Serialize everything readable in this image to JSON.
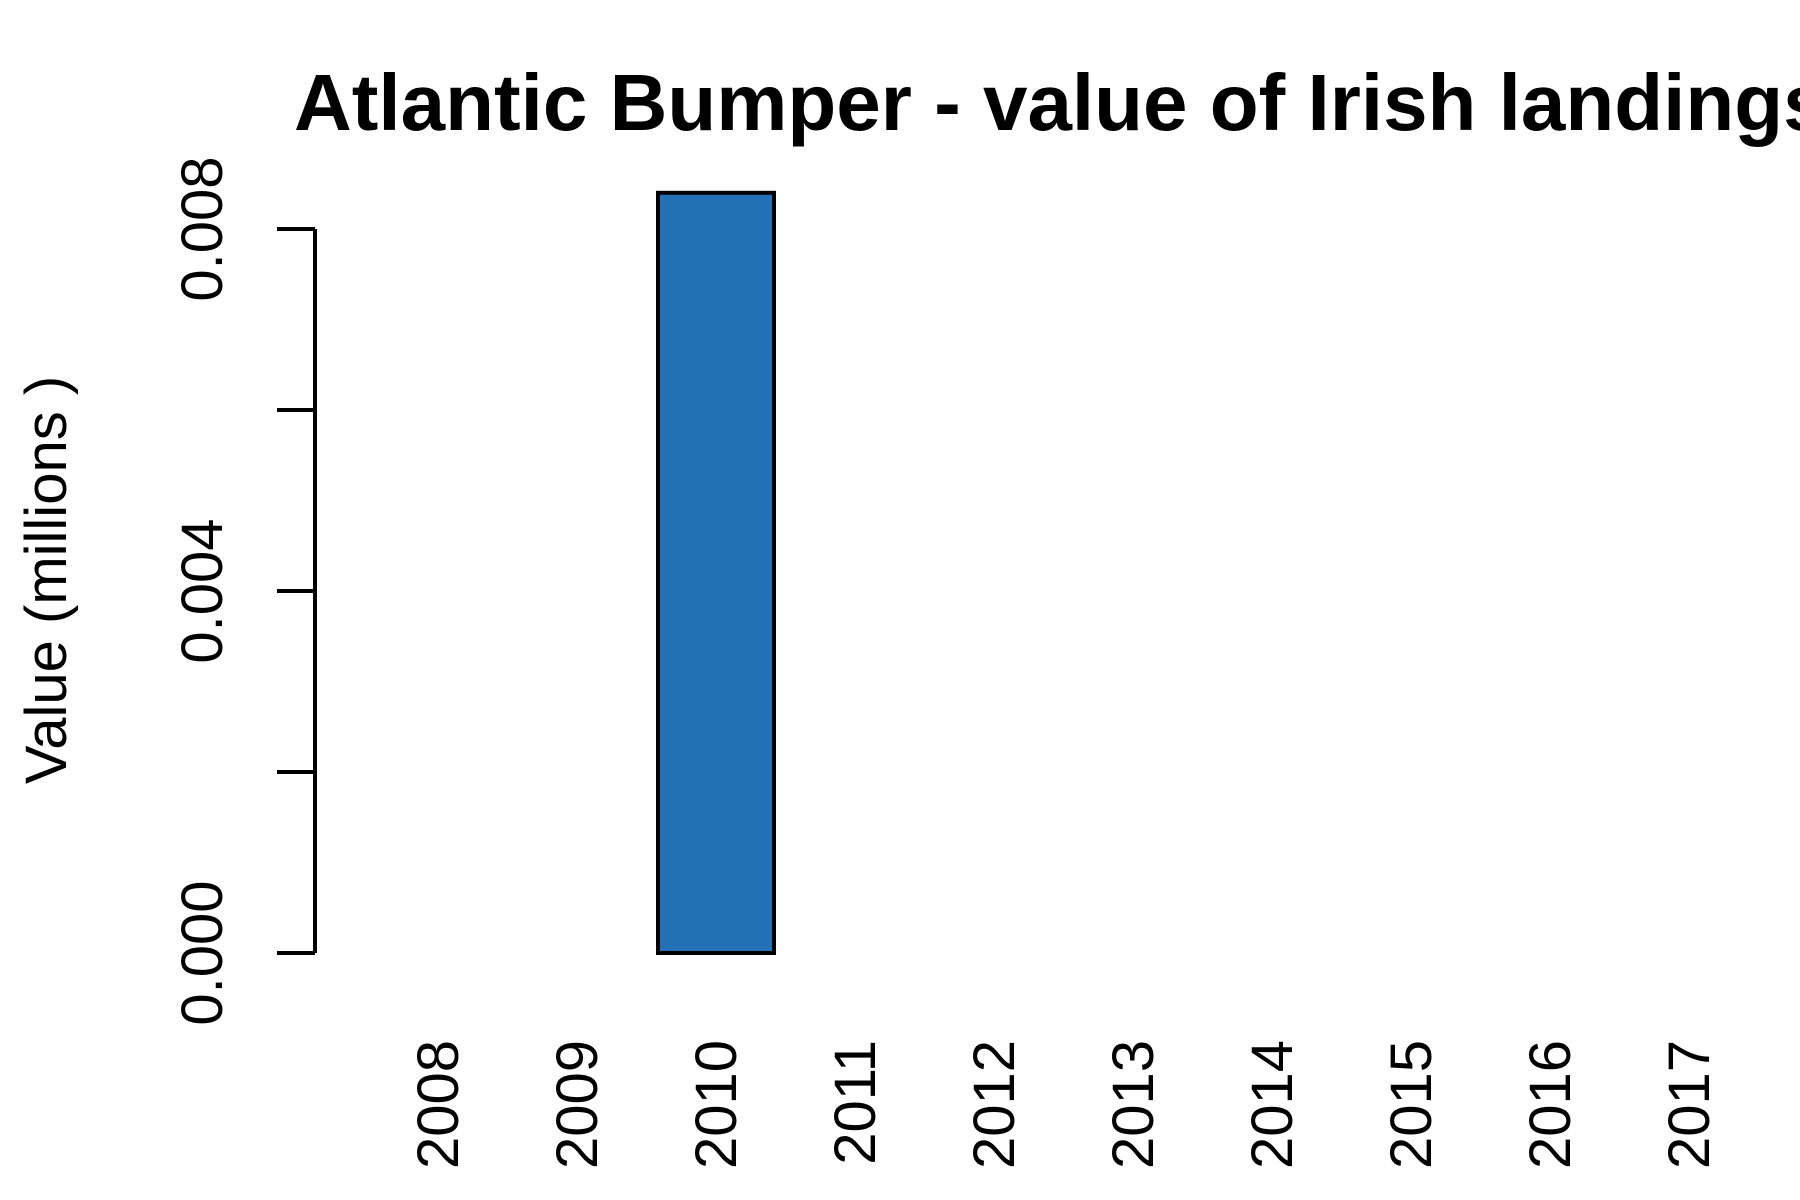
{
  "chart_data": {
    "type": "bar",
    "title": "Atlantic Bumper - value of Irish landings",
    "xlabel": "",
    "ylabel": "Value (millions )",
    "categories": [
      "2008",
      "2009",
      "2010",
      "2011",
      "2012",
      "2013",
      "2014",
      "2015",
      "2016",
      "2017"
    ],
    "values": [
      0,
      0,
      0.0084,
      0,
      0,
      0,
      0,
      0,
      0,
      0
    ],
    "ylim": [
      0,
      0.008
    ],
    "yticks": [
      0.0,
      0.002,
      0.004,
      0.006,
      0.008
    ],
    "ytick_labels": [
      "0.000",
      "",
      "0.004",
      "",
      "0.008"
    ],
    "bar_color": "#2270b5",
    "grid": false,
    "legend": "none"
  }
}
